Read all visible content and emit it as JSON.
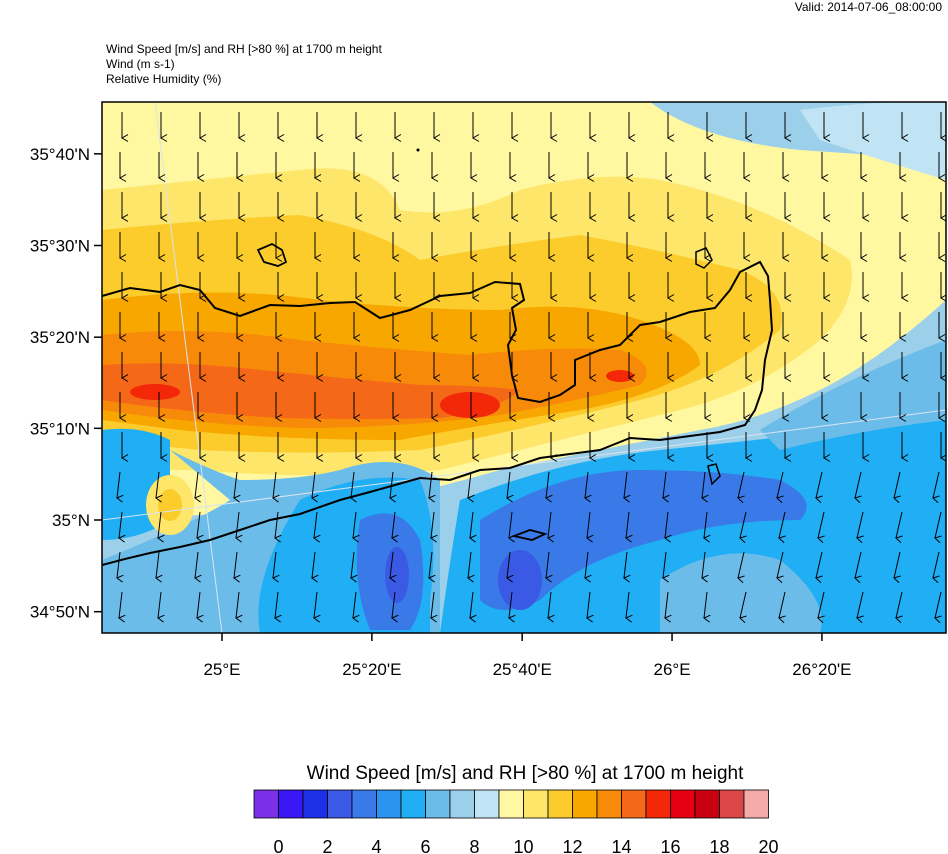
{
  "header": {
    "valid": "Valid: 2014-07-06_08:00:00"
  },
  "titles": {
    "line1": "Wind Speed [m/s] and RH [>80 %] at 1700 m height",
    "line2": "Wind   (m s-1)",
    "line3": "Relative Humidity   (%)"
  },
  "axes": {
    "lat_labels": [
      {
        "value": 35.667,
        "label": "35°40'N"
      },
      {
        "value": 35.5,
        "label": "35°30'N"
      },
      {
        "value": 35.333,
        "label": "35°20'N"
      },
      {
        "value": 35.167,
        "label": "35°10'N"
      },
      {
        "value": 35.0,
        "label": "35°N"
      },
      {
        "value": 34.833,
        "label": "34°50'N"
      }
    ],
    "lon_labels": [
      {
        "value": 25.0,
        "label": "25°E"
      },
      {
        "value": 25.333,
        "label": "25°20'E"
      },
      {
        "value": 25.667,
        "label": "25°40'E"
      },
      {
        "value": 26.0,
        "label": "26°E"
      },
      {
        "value": 26.333,
        "label": "26°20'E"
      }
    ]
  },
  "legend": {
    "title": "Wind Speed [m/s] and RH [>80 %] at 1700 m height",
    "colors": [
      "#7b2fe6",
      "#3a17f5",
      "#1e2fe8",
      "#3a5ae6",
      "#3a7ae8",
      "#2a94f0",
      "#20aef4",
      "#6cbcea",
      "#9ccfea",
      "#c1e4f4",
      "#fff8a0",
      "#fde66a",
      "#fbcc2c",
      "#f8a600",
      "#f88a0a",
      "#f56818",
      "#f22808",
      "#e40010",
      "#c80010",
      "#dc4848",
      "#f6aaaa"
    ],
    "labels": [
      "0",
      "2",
      "4",
      "6",
      "8",
      "10",
      "12",
      "14",
      "16",
      "18",
      "20"
    ]
  }
}
